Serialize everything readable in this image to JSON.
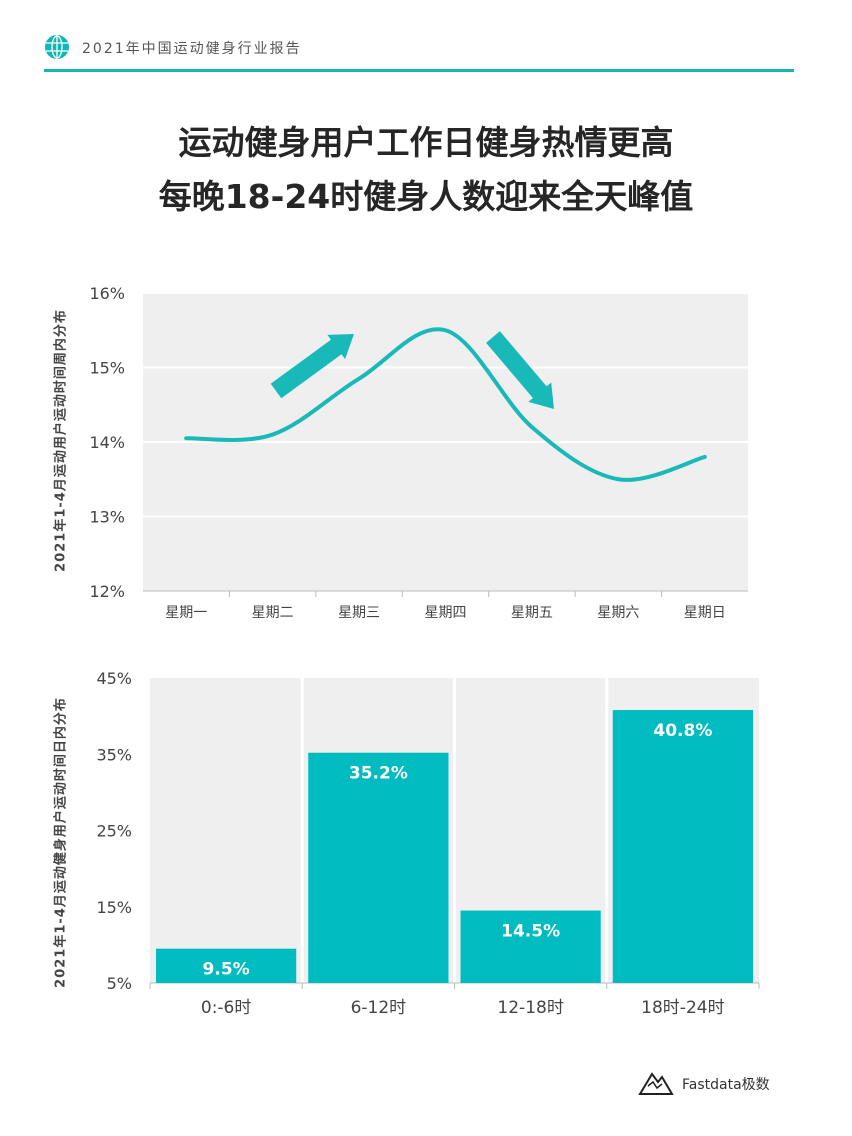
{
  "header": {
    "report_title": "2021年中国运动健身行业报告"
  },
  "title": {
    "line1": "运动健身用户工作日健身热情更高",
    "line2": "每晚18-24时健身人数迎来全天峰值"
  },
  "chart_data": [
    {
      "type": "line",
      "ylabel": "2021年1-4月运动用户运动时间周内分布",
      "categories": [
        "星期一",
        "星期二",
        "星期三",
        "星期四",
        "星期五",
        "星期六",
        "星期日"
      ],
      "series": [
        {
          "values": [
            14.05,
            14.1,
            14.85,
            15.5,
            14.2,
            13.5,
            13.8
          ]
        }
      ],
      "ylim": [
        12,
        16
      ],
      "yticks": [
        "12%",
        "13%",
        "14%",
        "15%",
        "16%"
      ],
      "grid": true,
      "color": "#1ab9b9",
      "annotations": [
        "arrow-up",
        "arrow-down"
      ]
    },
    {
      "type": "bar",
      "ylabel": "2021年1-4月运动健身用户运动时间日内分布",
      "categories": [
        "0:-6时",
        "6-12时",
        "12-18时",
        "18时-24时"
      ],
      "values": [
        9.5,
        35.2,
        14.5,
        40.8
      ],
      "data_labels": [
        "9.5%",
        "35.2%",
        "14.5%",
        "40.8%"
      ],
      "ylim": [
        5,
        45
      ],
      "yticks": [
        "5%",
        "15%",
        "25%",
        "35%",
        "45%"
      ],
      "grid": true,
      "color": "#00bcc0"
    }
  ],
  "footer": {
    "logo_text": "Fastdata极数"
  }
}
